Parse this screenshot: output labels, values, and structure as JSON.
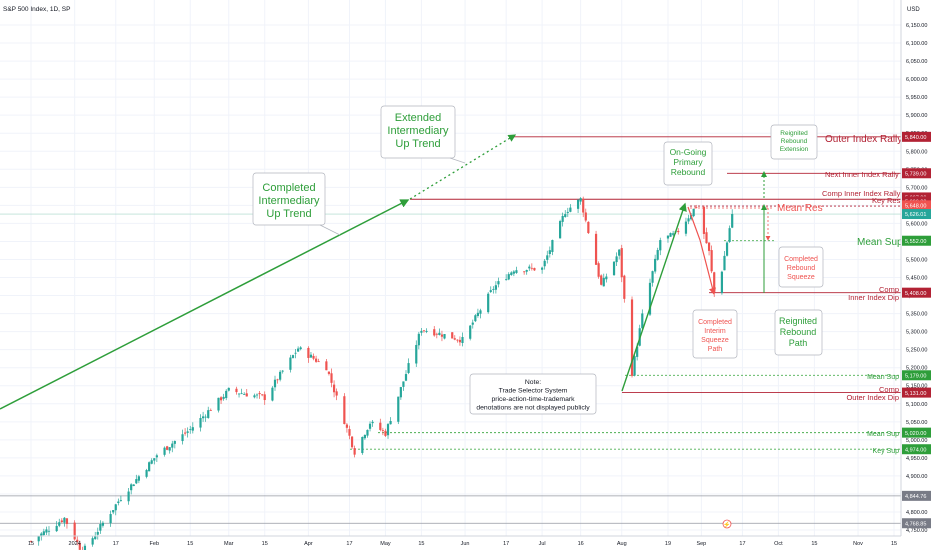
{
  "header": {
    "title": "S&P 500 Index, 1D, SP",
    "currency": "USD"
  },
  "chart_data": {
    "type": "candlestick",
    "title": "S&P 500 Index, 1D, SP",
    "ylim": [
      4740,
      6200
    ],
    "y_ticks": [
      "6,150.00",
      "6,100.00",
      "6,050.00",
      "6,000.00",
      "5,950.00",
      "5,900.00",
      "5,850.00",
      "5,800.00",
      "5,750.00",
      "5,700.00",
      "5,650.00",
      "5,600.00",
      "5,550.00",
      "5,500.00",
      "5,450.00",
      "5,400.00",
      "5,350.00",
      "5,300.00",
      "5,250.00",
      "5,200.00",
      "5,150.00",
      "5,100.00",
      "5,050.00",
      "5,000.00",
      "4,950.00",
      "4,900.00",
      "4,850.00",
      "4,800.00",
      "4,750.00"
    ],
    "x_ticks": [
      "15",
      "2024",
      "17",
      "Feb",
      "15",
      "Mar",
      "15",
      "Apr",
      "17",
      "May",
      "15",
      "Jun",
      "17",
      "Jul",
      "16",
      "Aug",
      "19",
      "Sep",
      "17",
      "Oct",
      "15",
      "Nov",
      "15"
    ],
    "x_tick_dates": [
      "2023-12-15",
      "2024-01-01",
      "2024-01-17",
      "2024-02-01",
      "2024-02-15",
      "2024-03-01",
      "2024-03-15",
      "2024-04-01",
      "2024-04-17",
      "2024-05-01",
      "2024-05-15",
      "2024-06-01",
      "2024-06-17",
      "2024-07-01",
      "2024-07-16",
      "2024-08-01",
      "2024-08-19",
      "2024-09-01",
      "2024-09-17",
      "2024-10-01",
      "2024-10-15",
      "2024-11-01",
      "2024-11-15"
    ],
    "price_anchors": [
      [
        "2023-12-15",
        4719
      ],
      [
        "2023-12-28",
        4783
      ],
      [
        "2024-01-04",
        4688
      ],
      [
        "2024-01-19",
        4840
      ],
      [
        "2024-02-02",
        4958
      ],
      [
        "2024-02-15",
        5029
      ],
      [
        "2024-03-01",
        5137
      ],
      [
        "2024-03-15",
        5117
      ],
      [
        "2024-03-28",
        5254
      ],
      [
        "2024-04-08",
        5202
      ],
      [
        "2024-04-19",
        4967
      ],
      [
        "2024-04-25",
        5048
      ],
      [
        "2024-05-01",
        5018
      ],
      [
        "2024-05-15",
        5308
      ],
      [
        "2024-05-31",
        5277
      ],
      [
        "2024-06-12",
        5421
      ],
      [
        "2024-06-20",
        5473
      ],
      [
        "2024-07-01",
        5475
      ],
      [
        "2024-07-10",
        5633
      ],
      [
        "2024-07-16",
        5667
      ],
      [
        "2024-07-24",
        5427
      ],
      [
        "2024-07-31",
        5522
      ],
      [
        "2024-08-05",
        5186
      ],
      [
        "2024-08-09",
        5344
      ],
      [
        "2024-08-16",
        5554
      ],
      [
        "2024-08-22",
        5570
      ],
      [
        "2024-08-30",
        5648
      ],
      [
        "2024-09-04",
        5520
      ],
      [
        "2024-09-06",
        5408
      ],
      [
        "2024-09-09",
        5471
      ],
      [
        "2024-09-13",
        5626
      ]
    ],
    "last_close": 5626.01,
    "levels": [
      {
        "label": "Outer Index Rally",
        "value": 5840.0,
        "color": "#b22234"
      },
      {
        "label": "Next Inner Index Rally",
        "value": 5739.0,
        "color": "#b22234"
      },
      {
        "label": "Comp Inner Index Rally",
        "value": 5667.0,
        "color": "#b22234"
      },
      {
        "label": "Key Res",
        "value": 5648.0,
        "color": "#b22234"
      },
      {
        "label": "Mean Res",
        "value": 5666.0,
        "color": "#b22234"
      },
      {
        "label": "Mean Sup",
        "value": 5552.0,
        "color": "#4caf50"
      },
      {
        "label": "Comp Inner Index Dip",
        "value": 5408.0,
        "color": "#b22234"
      },
      {
        "label": "Mean Sup",
        "value": 5179.0,
        "color": "#4caf50"
      },
      {
        "label": "Comp Outer Index Dip",
        "value": 5131.0,
        "color": "#b22234"
      },
      {
        "label": "Mean Sup",
        "value": 5020.0,
        "color": "#4caf50"
      },
      {
        "label": "Key Sup",
        "value": 4974.0,
        "color": "#4caf50"
      }
    ],
    "price_labels": [
      "5,840.00",
      "5,739.00",
      "5,667.00",
      "5,666.00",
      "5,648.00",
      "5,626.01",
      "5,552.00",
      "5,408.00",
      "5,179.00",
      "5,131.00",
      "5,020.00",
      "4,974.00",
      "4,844.76",
      "4,768.85"
    ],
    "gray_lines": [
      4844.76,
      4768.85
    ]
  },
  "annotations": {
    "completed_trend": "Completed\nIntermediary\nUp Trend",
    "extended_trend": "Extended\nIntermediary\nUp Trend",
    "ongoing_rebound": "On-Going\nPrimary\nRebound",
    "reignited_extension": "Reignited\nRebound\nExtension",
    "completed_squeeze": "Completed\nRebound\nSqueeze",
    "interim_squeeze": "Completed\nInterim\nSqueeze\nPath",
    "reignited_path": "Reignited\nRebound\nPath",
    "note": "Note:\nTrade Selector System\nprice-action-time-trademark\ndenotations are not displayed publicly"
  },
  "level_texts": {
    "outer_rally": "Outer Index Rally",
    "next_inner_rally": "Next Inner Index Rally",
    "comp_inner_rally": "Comp Inner Index Rally",
    "key_res": "Key Res",
    "mean_res": "Mean Res",
    "mean_sup_big": "Mean Sup",
    "comp_inner_dip": "Comp\nInner Index Dip",
    "mean_sup_1": "Mean Sup",
    "comp_outer_dip": "Comp\nOuter Index Dip",
    "mean_sup_2": "Mean Sup",
    "key_sup": "Key Sup"
  },
  "colors": {
    "up": "#26a69a",
    "down": "#ef5350",
    "resistance": "#b22234",
    "support": "#4caf50",
    "arrow_green": "#2e9e3a"
  }
}
